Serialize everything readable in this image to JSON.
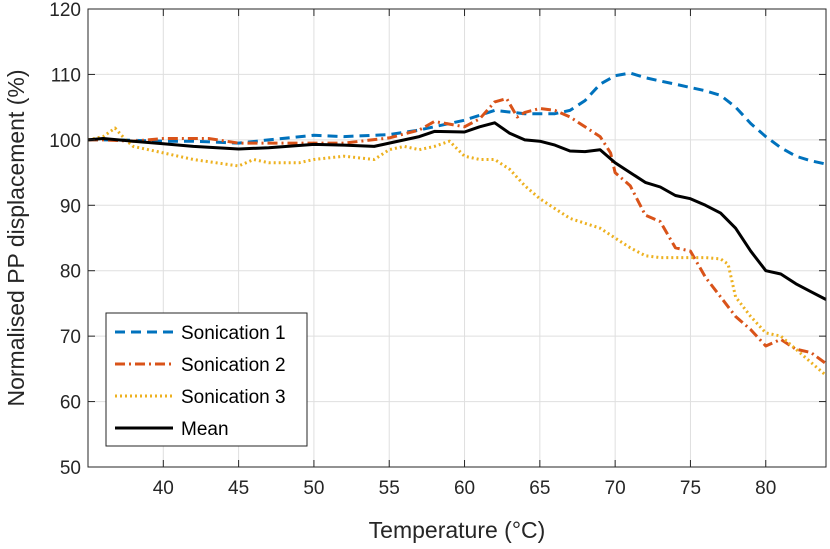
{
  "chart_data": {
    "type": "line",
    "title": "",
    "xlabel": "Temperature (°C)",
    "ylabel": "Normalised PP displacement (%)",
    "xlim": [
      35,
      84
    ],
    "ylim": [
      50,
      120
    ],
    "xticks": [
      40,
      45,
      50,
      55,
      60,
      65,
      70,
      75,
      80
    ],
    "yticks": [
      50,
      60,
      70,
      80,
      90,
      100,
      110,
      120
    ],
    "grid": true,
    "legend_position": "bottom-left",
    "series": [
      {
        "name": "Sonication 1",
        "color": "#0072BD",
        "style": "dashed",
        "x": [
          35,
          37,
          40,
          42,
          45,
          47,
          50,
          52,
          55,
          57,
          60,
          62,
          64,
          66,
          67,
          68,
          69,
          70,
          71,
          72,
          73,
          74,
          75,
          76,
          77,
          78,
          79,
          80,
          81,
          82,
          83,
          84
        ],
        "y": [
          100,
          100,
          99.8,
          99.8,
          99.5,
          100,
          100.7,
          100.5,
          100.8,
          101.5,
          103,
          104.5,
          104,
          104,
          104.5,
          106,
          108.5,
          109.8,
          110.2,
          109.5,
          109,
          108.5,
          108,
          107.5,
          106.8,
          105,
          102.5,
          100.5,
          98.8,
          97.5,
          96.8,
          96.3
        ]
      },
      {
        "name": "Sonication 2",
        "color": "#D95319",
        "style": "dashdot",
        "x": [
          35,
          36,
          38,
          40,
          41,
          43,
          45,
          47,
          50,
          52,
          55,
          57,
          58,
          60,
          61,
          62,
          62.8,
          63.5,
          64,
          65,
          66,
          67,
          68,
          69,
          69.7,
          70,
          71,
          72,
          73,
          74,
          75,
          76,
          77,
          78,
          79,
          80,
          81,
          82,
          83,
          84
        ],
        "y": [
          100,
          100,
          99.8,
          100.2,
          100.2,
          100.2,
          99.5,
          99.5,
          99.5,
          99.5,
          100.3,
          101.5,
          102.8,
          102,
          103.2,
          105.8,
          106.3,
          103.5,
          104.2,
          104.8,
          104.5,
          103.5,
          102,
          100.5,
          98,
          95,
          93,
          88.5,
          87.5,
          83.5,
          83,
          79,
          76,
          73,
          71,
          68.5,
          69.5,
          68,
          67.5,
          65.8
        ]
      },
      {
        "name": "Sonication 3",
        "color": "#EDB120",
        "style": "dotted",
        "x": [
          35,
          36,
          36.8,
          37.5,
          38,
          40,
          42,
          45,
          46,
          47,
          49,
          50,
          52,
          54,
          55,
          56,
          57,
          58,
          59,
          60,
          61,
          62,
          63,
          64,
          65,
          67,
          69,
          70,
          71,
          72,
          73,
          74,
          75,
          76,
          77,
          77.5,
          78,
          79,
          80,
          81,
          82,
          83,
          84
        ],
        "y": [
          100,
          100.5,
          101.8,
          100,
          99,
          98,
          97,
          96,
          97,
          96.5,
          96.5,
          97,
          97.5,
          97,
          98.5,
          99,
          98.5,
          99,
          99.8,
          97.5,
          97,
          97,
          95.5,
          93,
          91,
          88,
          86.5,
          85,
          83.5,
          82.3,
          82,
          82,
          82,
          82,
          81.8,
          81,
          76,
          73,
          70.5,
          70,
          68,
          66,
          64
        ]
      },
      {
        "name": "Mean",
        "color": "#000000",
        "style": "solid",
        "x": [
          35,
          36,
          38,
          40,
          42,
          45,
          47,
          50,
          52,
          54,
          55,
          57,
          58,
          60,
          61,
          62,
          63,
          64,
          65,
          66,
          67,
          68,
          69,
          70,
          71,
          72,
          73,
          74,
          75,
          76,
          77,
          78,
          79,
          80,
          81,
          82,
          83,
          84
        ],
        "y": [
          100,
          100.2,
          99.8,
          99.4,
          99,
          98.6,
          98.8,
          99.3,
          99.2,
          99,
          99.5,
          100.5,
          101.3,
          101.2,
          102,
          102.6,
          101,
          100,
          99.8,
          99.2,
          98.3,
          98.2,
          98.5,
          96.5,
          95,
          93.5,
          92.8,
          91.5,
          91,
          90,
          88.8,
          86.5,
          83,
          80,
          79.5,
          78,
          76.8,
          75.6
        ]
      }
    ]
  }
}
